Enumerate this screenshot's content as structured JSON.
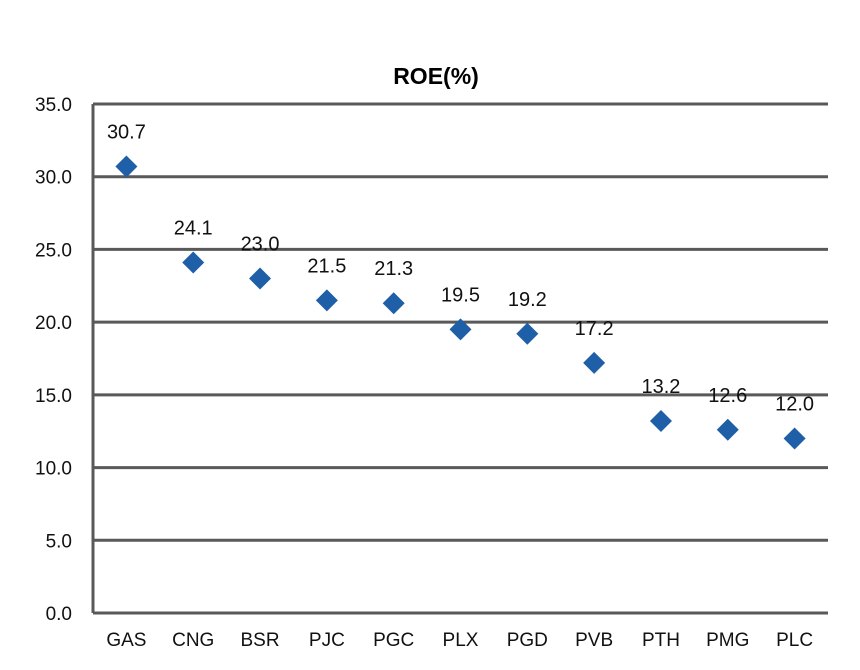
{
  "chart_data": {
    "type": "scatter",
    "title": "ROE(%)",
    "categories": [
      "GAS",
      "CNG",
      "BSR",
      "PJC",
      "PGC",
      "PLX",
      "PGD",
      "PVB",
      "PTH",
      "PMG",
      "PLC"
    ],
    "values": [
      30.7,
      24.1,
      23.0,
      21.5,
      21.3,
      19.5,
      19.2,
      17.2,
      13.2,
      12.6,
      12.0
    ],
    "data_labels": [
      "30.7",
      "24.1",
      "23.0",
      "21.5",
      "21.3",
      "19.5",
      "19.2",
      "17.2",
      "13.2",
      "12.6",
      "12.0"
    ],
    "y_ticks": [
      "0.0",
      "5.0",
      "10.0",
      "15.0",
      "20.0",
      "25.0",
      "30.0",
      "35.0"
    ],
    "ylim": [
      0,
      35
    ],
    "xlabel": "",
    "ylabel": "",
    "grid": true,
    "legend": "none",
    "marker": "diamond",
    "colors": {
      "marker": "#1f5fa8",
      "grid": "#595959",
      "axis": "#595959",
      "text": "#111111"
    }
  }
}
